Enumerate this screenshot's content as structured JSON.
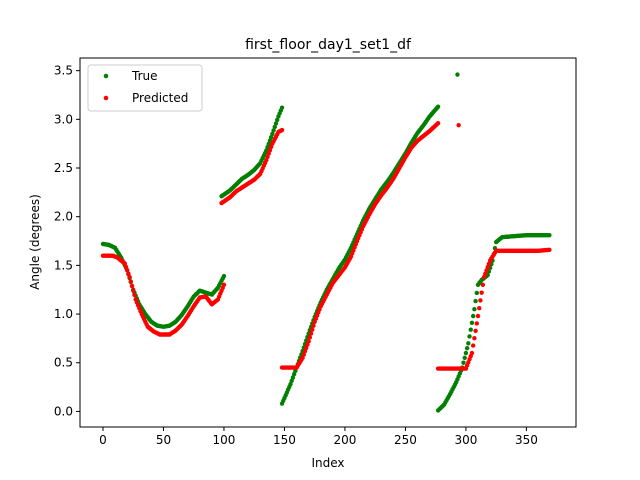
{
  "chart_data": {
    "type": "scatter",
    "title": "first_floor_day1_set1_df",
    "xlabel": "Index",
    "ylabel": "Angle (degrees)",
    "xlim": [
      -19,
      391
    ],
    "ylim": [
      -0.16,
      3.63
    ],
    "xticks": [
      0,
      50,
      100,
      150,
      200,
      250,
      300,
      350
    ],
    "yticks": [
      0.0,
      0.5,
      1.0,
      1.5,
      2.0,
      2.5,
      3.0,
      3.5
    ],
    "xtick_labels": [
      "0",
      "50",
      "100",
      "150",
      "200",
      "250",
      "300",
      "350"
    ],
    "ytick_labels": [
      "0.0",
      "0.5",
      "1.0",
      "1.5",
      "2.0",
      "2.5",
      "3.0",
      "3.5"
    ],
    "grid": false,
    "legend_position": "upper-left",
    "series": [
      {
        "name": "True",
        "color": "#008000",
        "segments": [
          {
            "x_start": 0,
            "x_end": 100,
            "anchors": [
              [
                0,
                1.72
              ],
              [
                5,
                1.71
              ],
              [
                10,
                1.68
              ],
              [
                15,
                1.58
              ],
              [
                20,
                1.45
              ],
              [
                25,
                1.25
              ],
              [
                30,
                1.1
              ],
              [
                35,
                1.0
              ],
              [
                40,
                0.92
              ],
              [
                45,
                0.88
              ],
              [
                50,
                0.87
              ],
              [
                55,
                0.88
              ],
              [
                60,
                0.92
              ],
              [
                65,
                0.99
              ],
              [
                70,
                1.08
              ],
              [
                75,
                1.18
              ],
              [
                80,
                1.24
              ],
              [
                85,
                1.22
              ],
              [
                90,
                1.2
              ],
              [
                95,
                1.27
              ],
              [
                100,
                1.39
              ]
            ]
          },
          {
            "x_start": 98,
            "x_end": 148,
            "anchors": [
              [
                98,
                2.21
              ],
              [
                105,
                2.27
              ],
              [
                110,
                2.33
              ],
              [
                115,
                2.39
              ],
              [
                120,
                2.43
              ],
              [
                125,
                2.48
              ],
              [
                130,
                2.55
              ],
              [
                135,
                2.68
              ],
              [
                140,
                2.85
              ],
              [
                145,
                3.03
              ],
              [
                148,
                3.12
              ]
            ]
          },
          {
            "x_start": 148,
            "x_end": 277,
            "anchors": [
              [
                148,
                0.08
              ],
              [
                155,
                0.28
              ],
              [
                160,
                0.45
              ],
              [
                165,
                0.62
              ],
              [
                170,
                0.8
              ],
              [
                175,
                0.97
              ],
              [
                180,
                1.12
              ],
              [
                185,
                1.25
              ],
              [
                190,
                1.36
              ],
              [
                195,
                1.47
              ],
              [
                200,
                1.56
              ],
              [
                205,
                1.68
              ],
              [
                210,
                1.82
              ],
              [
                215,
                1.96
              ],
              [
                220,
                2.08
              ],
              [
                225,
                2.18
              ],
              [
                230,
                2.28
              ],
              [
                235,
                2.36
              ],
              [
                240,
                2.45
              ],
              [
                245,
                2.55
              ],
              [
                250,
                2.65
              ],
              [
                255,
                2.76
              ],
              [
                260,
                2.86
              ],
              [
                265,
                2.94
              ],
              [
                270,
                3.03
              ],
              [
                277,
                3.13
              ]
            ]
          },
          {
            "x_start": 277,
            "x_end": 369,
            "anchors": [
              [
                277,
                0.01
              ],
              [
                282,
                0.07
              ],
              [
                287,
                0.18
              ],
              [
                292,
                0.3
              ],
              [
                297,
                0.45
              ],
              [
                302,
                0.7
              ],
              [
                307,
                1.05
              ],
              [
                310,
                1.3
              ],
              [
                313,
                1.35
              ],
              [
                318,
                1.4
              ],
              [
                322,
                1.55
              ],
              [
                325,
                1.74
              ],
              [
                330,
                1.79
              ],
              [
                340,
                1.8
              ],
              [
                350,
                1.81
              ],
              [
                369,
                1.81
              ]
            ]
          }
        ],
        "outliers": [
          [
            293,
            3.46
          ]
        ]
      },
      {
        "name": "Predicted",
        "color": "#ff0000",
        "segments": [
          {
            "x_start": 0,
            "x_end": 100,
            "anchors": [
              [
                0,
                1.6
              ],
              [
                8,
                1.6
              ],
              [
                12,
                1.58
              ],
              [
                18,
                1.52
              ],
              [
                22,
                1.38
              ],
              [
                27,
                1.15
              ],
              [
                32,
                1.0
              ],
              [
                37,
                0.87
              ],
              [
                42,
                0.82
              ],
              [
                47,
                0.79
              ],
              [
                55,
                0.79
              ],
              [
                60,
                0.83
              ],
              [
                65,
                0.89
              ],
              [
                70,
                0.98
              ],
              [
                75,
                1.08
              ],
              [
                80,
                1.17
              ],
              [
                85,
                1.18
              ],
              [
                90,
                1.1
              ],
              [
                95,
                1.15
              ],
              [
                100,
                1.3
              ]
            ]
          },
          {
            "x_start": 98,
            "x_end": 148,
            "anchors": [
              [
                98,
                2.14
              ],
              [
                105,
                2.2
              ],
              [
                110,
                2.26
              ],
              [
                115,
                2.3
              ],
              [
                120,
                2.34
              ],
              [
                125,
                2.38
              ],
              [
                130,
                2.44
              ],
              [
                135,
                2.58
              ],
              [
                140,
                2.75
              ],
              [
                145,
                2.87
              ],
              [
                148,
                2.89
              ]
            ]
          },
          {
            "x_start": 148,
            "x_end": 277,
            "anchors": [
              [
                148,
                0.45
              ],
              [
                160,
                0.45
              ],
              [
                165,
                0.55
              ],
              [
                170,
                0.72
              ],
              [
                175,
                0.92
              ],
              [
                180,
                1.08
              ],
              [
                185,
                1.2
              ],
              [
                190,
                1.32
              ],
              [
                195,
                1.4
              ],
              [
                200,
                1.48
              ],
              [
                205,
                1.59
              ],
              [
                210,
                1.75
              ],
              [
                215,
                1.9
              ],
              [
                220,
                2.02
              ],
              [
                225,
                2.13
              ],
              [
                230,
                2.22
              ],
              [
                235,
                2.3
              ],
              [
                240,
                2.39
              ],
              [
                245,
                2.5
              ],
              [
                250,
                2.61
              ],
              [
                255,
                2.71
              ],
              [
                260,
                2.78
              ],
              [
                265,
                2.83
              ],
              [
                270,
                2.88
              ],
              [
                277,
                2.96
              ]
            ]
          },
          {
            "x_start": 277,
            "x_end": 369,
            "anchors": [
              [
                277,
                0.44
              ],
              [
                300,
                0.44
              ],
              [
                305,
                0.6
              ],
              [
                310,
                0.98
              ],
              [
                315,
                1.38
              ],
              [
                320,
                1.55
              ],
              [
                325,
                1.65
              ],
              [
                330,
                1.65
              ],
              [
                345,
                1.65
              ],
              [
                360,
                1.65
              ],
              [
                369,
                1.66
              ]
            ]
          }
        ],
        "outliers": [
          [
            294,
            2.94
          ]
        ]
      }
    ]
  }
}
